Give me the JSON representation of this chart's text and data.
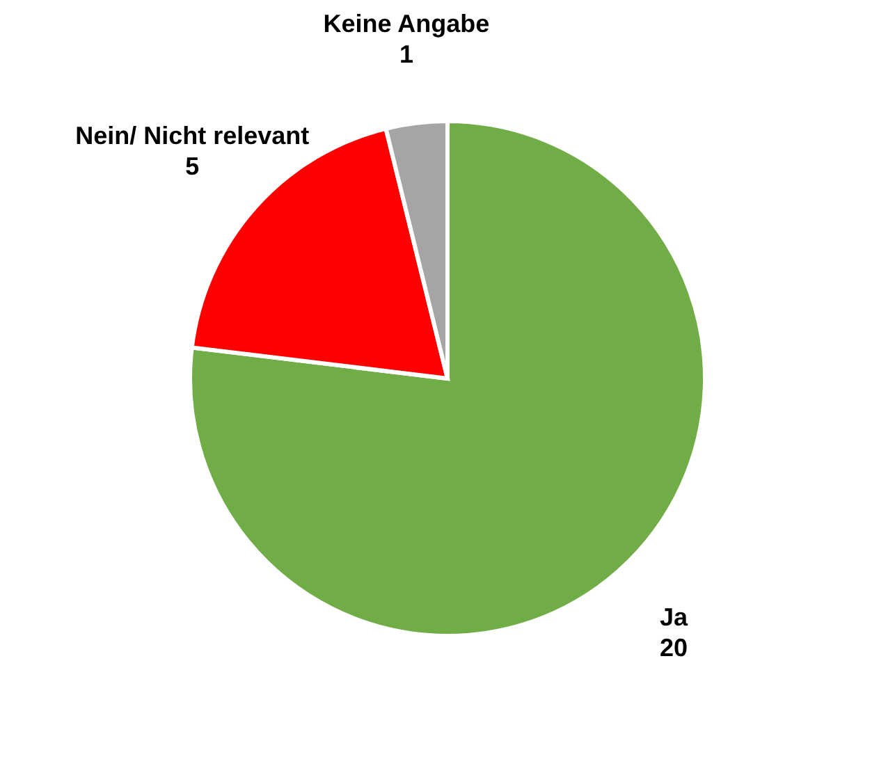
{
  "chart_data": {
    "type": "pie",
    "categories": [
      "Ja",
      "Nein/ Nicht relevant",
      "Keine Angabe"
    ],
    "values": [
      20,
      5,
      1
    ],
    "colors": [
      "#70ad47",
      "#ff0000",
      "#a5a5a5"
    ],
    "data_labels": true
  }
}
